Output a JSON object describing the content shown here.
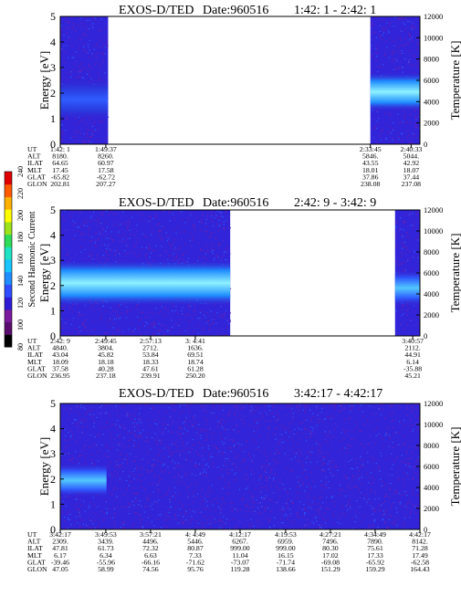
{
  "colorbar": {
    "label": "Second Harmonic Current",
    "ticks": [
      "80",
      "100",
      "120",
      "140",
      "160",
      "180",
      "200",
      "220",
      "240"
    ],
    "range": [
      80,
      240
    ],
    "colors": [
      "#000000",
      "#5a0d6e",
      "#7a1a9c",
      "#2e1bd6",
      "#2f4cff",
      "#1f8cff",
      "#19c4ff",
      "#1ee3c4",
      "#2edc5a",
      "#9ee21a",
      "#ffff00",
      "#ffb000",
      "#ff5a00",
      "#e00000"
    ]
  },
  "chart_data": [
    {
      "type": "heatmap",
      "title": "EXOS-D/TED",
      "date_label": "Date:960516",
      "time_label": "1:42: 1 - 2:42: 1",
      "ylabel": "Energy [eV]",
      "ylabel_right": "Temperature [K]",
      "ylim": [
        0,
        5
      ],
      "yticks": [
        "0",
        "1",
        "2",
        "3",
        "4",
        "5"
      ],
      "ylim_right": [
        0,
        12000
      ],
      "yticks_right": [
        "0",
        "2000",
        "4000",
        "6000",
        "8000",
        "10000",
        "12000"
      ],
      "data_spans": [
        {
          "start": "1:42:1",
          "end": "1:50:0",
          "band_low": 1.0,
          "band_high": 2.5,
          "band_level": "low"
        },
        {
          "start": "2:33:45",
          "end": "2:42:1",
          "band_low": 1.3,
          "band_high": 2.8,
          "band_level": "high"
        }
      ],
      "orbit_rows": [
        "UT",
        "ALT",
        "ILAT",
        "MLT",
        "GLAT",
        "GLON"
      ],
      "orbit_columns": [
        {
          "values": [
            "1:42: 1",
            "8180.",
            "64.65",
            "17.45",
            "-65.82",
            "202.81"
          ]
        },
        {
          "values": [
            "1:49:37",
            "8260.",
            "60.97",
            "17.58",
            "-62.72",
            "207.27"
          ]
        },
        {
          "values": [
            "2:33:45",
            "5846.",
            "43.55",
            "18.01",
            "37.86",
            "238.08"
          ]
        },
        {
          "values": [
            "2:40:33",
            "5044.",
            "42.92",
            "18.07",
            "37.44",
            "237.08"
          ]
        }
      ]
    },
    {
      "type": "heatmap",
      "title": "EXOS-D/TED",
      "date_label": "Date:960516",
      "time_label": "2:42: 9 - 3:42: 9",
      "ylabel": "Energy [eV]",
      "ylabel_right": "Temperature [K]",
      "ylim": [
        0,
        5
      ],
      "yticks": [
        "0",
        "1",
        "2",
        "3",
        "4",
        "5"
      ],
      "ylim_right": [
        0,
        12000
      ],
      "yticks_right": [
        "0",
        "2000",
        "4000",
        "6000",
        "8000",
        "10000",
        "12000"
      ],
      "data_spans": [
        {
          "start": "2:42:9",
          "end": "3:10:30",
          "band_low": 1.2,
          "band_high": 3.0,
          "band_level": "high"
        },
        {
          "start": "3:38:0",
          "end": "3:42:9",
          "band_low": 1.2,
          "band_high": 2.6,
          "band_level": "mid"
        }
      ],
      "orbit_rows": [
        "UT",
        "ALT",
        "ILAT",
        "MLT",
        "GLAT",
        "GLON"
      ],
      "orbit_columns": [
        {
          "values": [
            "2:42: 9",
            "4840.",
            "43.04",
            "18.09",
            "37.58",
            "236.95"
          ]
        },
        {
          "values": [
            "2:49:45",
            "3804.",
            "45.82",
            "18.18",
            "40.28",
            "237.18"
          ]
        },
        {
          "values": [
            "2:57:13",
            "2712.",
            "53.84",
            "18.33",
            "47.61",
            "239.91"
          ]
        },
        {
          "values": [
            "3: 4:41",
            "1636.",
            "69.51",
            "18.74",
            "61.28",
            "250.20"
          ]
        },
        {
          "values": [
            "3:40:57",
            "2112.",
            "44.91",
            "6.14",
            "-35.88",
            "45.21"
          ]
        }
      ]
    },
    {
      "type": "heatmap",
      "title": "EXOS-D/TED",
      "date_label": "Date:960516",
      "time_label": "3:42:17 - 4:42:17",
      "ylabel": "Energy [eV]",
      "ylabel_right": "Temperature [K]",
      "ylim": [
        0,
        5
      ],
      "yticks": [
        "0",
        "1",
        "2",
        "3",
        "4",
        "5"
      ],
      "ylim_right": [
        0,
        12000
      ],
      "yticks_right": [
        "0",
        "2000",
        "4000",
        "6000",
        "8000",
        "10000",
        "12000"
      ],
      "data_spans": [
        {
          "start": "3:42:17",
          "end": "4:42:17",
          "band_low": 1.3,
          "band_high": 2.6,
          "band_level": "mid",
          "band_end": "3:50:0"
        }
      ],
      "orbit_rows": [
        "UT",
        "ALT",
        "ILAT",
        "MLT",
        "GLAT",
        "GLON"
      ],
      "orbit_columns": [
        {
          "values": [
            "3:42:17",
            "2309.",
            "47.81",
            "6.17",
            "-39.46",
            "47.05"
          ]
        },
        {
          "values": [
            "3:49:53",
            "3439.",
            "61.73",
            "6.34",
            "-55.96",
            "58.99"
          ]
        },
        {
          "values": [
            "3:57:21",
            "4496.",
            "72.32",
            "6.63",
            "-66.16",
            "74.56"
          ]
        },
        {
          "values": [
            "4: 4:49",
            "5446.",
            "80.87",
            "7.33",
            "-71.62",
            "95.76"
          ]
        },
        {
          "values": [
            "4:12:17",
            "6267.",
            "999.00",
            "11.04",
            "-73.07",
            "119.28"
          ]
        },
        {
          "values": [
            "4:19:53",
            "6959.",
            "999.00",
            "16.15",
            "-71.74",
            "138.66"
          ]
        },
        {
          "values": [
            "4:27:21",
            "7496.",
            "80.30",
            "17.02",
            "-69.08",
            "151.29"
          ]
        },
        {
          "values": [
            "4:34:49",
            "7890.",
            "75.61",
            "17.33",
            "-65.92",
            "159.29"
          ]
        },
        {
          "values": [
            "4:42:17",
            "8142.",
            "71.28",
            "17.49",
            "-62.58",
            "164.43"
          ]
        }
      ]
    }
  ]
}
